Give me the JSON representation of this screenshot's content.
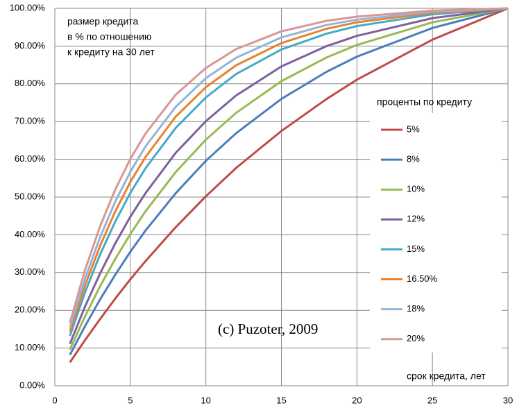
{
  "chart_data": {
    "type": "line",
    "annotations": [
      "размер кредита",
      "в % по отношению",
      "к кредиту на 30 лет"
    ],
    "legend_title": "проценты по кредиту",
    "x_label": "срок кредита, лет",
    "watermark": "(c) Puzoter, 2009",
    "x": [
      1,
      2,
      3,
      4,
      5,
      6,
      8,
      10,
      12,
      15,
      18,
      20,
      25,
      30
    ],
    "series": [
      {
        "name": "5%",
        "color": "#be4b48",
        "values": [
          6.2,
          12.1,
          17.7,
          23.1,
          28.2,
          33.0,
          42.0,
          50.2,
          57.7,
          67.5,
          76.0,
          81.1,
          91.7,
          100
        ]
      },
      {
        "name": "8%",
        "color": "#4a7ebb",
        "values": [
          8.2,
          15.8,
          22.9,
          29.4,
          35.5,
          41.1,
          51.0,
          59.6,
          66.9,
          76.0,
          83.2,
          87.2,
          94.8,
          100
        ]
      },
      {
        "name": "10%",
        "color": "#98b954",
        "values": [
          9.6,
          18.4,
          26.4,
          33.6,
          40.2,
          46.2,
          56.6,
          65.2,
          72.3,
          80.7,
          87.0,
          90.3,
          96.3,
          100
        ]
      },
      {
        "name": "12%",
        "color": "#7d60a0",
        "values": [
          11.1,
          21.0,
          29.8,
          37.7,
          44.8,
          51.0,
          61.7,
          70.1,
          76.9,
          84.6,
          90.0,
          92.7,
          97.4,
          100
        ]
      },
      {
        "name": "15%",
        "color": "#46aac5",
        "values": [
          13.2,
          24.8,
          34.8,
          43.5,
          51.1,
          57.6,
          68.3,
          76.4,
          82.6,
          89.1,
          93.3,
          95.3,
          98.4,
          100
        ]
      },
      {
        "name": "16.50%",
        "color": "#e8822e",
        "values": [
          14.3,
          26.6,
          37.1,
          46.2,
          54.0,
          60.6,
          71.3,
          79.1,
          84.9,
          90.8,
          94.6,
          96.3,
          98.8,
          100
        ]
      },
      {
        "name": "18%",
        "color": "#95b3d7",
        "values": [
          15.4,
          28.4,
          39.4,
          48.8,
          56.7,
          63.4,
          73.9,
          81.5,
          86.9,
          92.3,
          95.6,
          97.0,
          99.1,
          100
        ]
      },
      {
        "name": "20%",
        "color": "#d99694",
        "values": [
          16.7,
          30.7,
          42.3,
          52.0,
          60.1,
          66.8,
          77.1,
          84.2,
          89.2,
          93.9,
          96.7,
          97.8,
          99.4,
          100
        ]
      }
    ],
    "xlim": [
      0,
      30
    ],
    "xticks": [
      0,
      5,
      10,
      15,
      20,
      25,
      30
    ],
    "ylim": [
      0,
      100
    ],
    "yticks": [
      {
        "value": 0,
        "label": "0.00%"
      },
      {
        "value": 10,
        "label": "10.00%"
      },
      {
        "value": 20,
        "label": "20.00%"
      },
      {
        "value": 30,
        "label": "30.00%"
      },
      {
        "value": 40,
        "label": "40.00%"
      },
      {
        "value": 50,
        "label": "50.00%"
      },
      {
        "value": 60,
        "label": "60.00%"
      },
      {
        "value": 70,
        "label": "70.00%"
      },
      {
        "value": 80,
        "label": "80.00%"
      },
      {
        "value": 90,
        "label": "90.00%"
      },
      {
        "value": 100,
        "label": "100.00%"
      }
    ],
    "grid": true
  }
}
